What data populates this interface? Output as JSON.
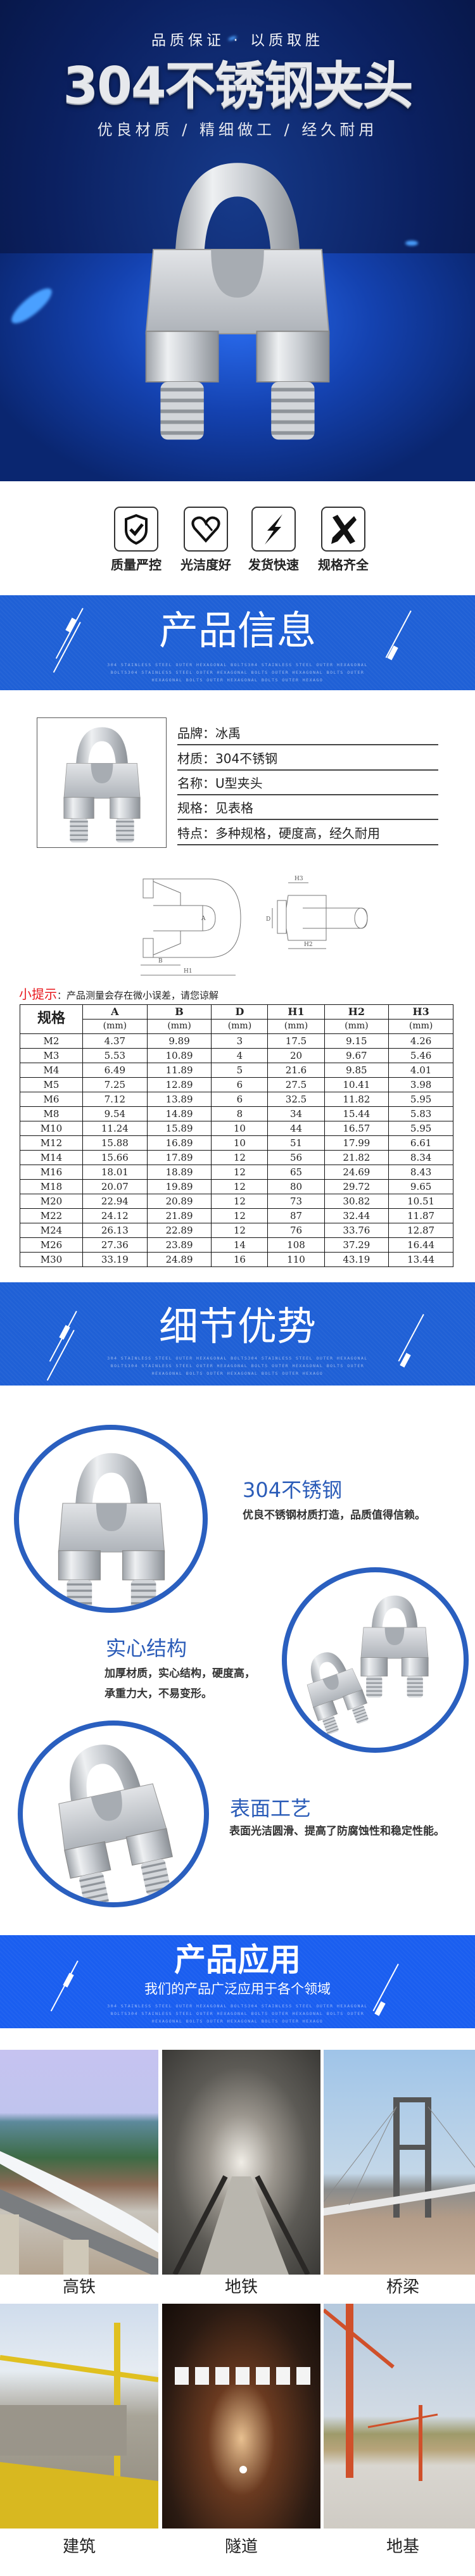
{
  "hero": {
    "kicker": "品质保证 · 以质取胜",
    "title": "304不锈钢夹头",
    "subtitle": "优良材质 / 精细做工 / 经久耐用"
  },
  "features": [
    {
      "icon": "shield-check-icon",
      "label": "质量严控"
    },
    {
      "icon": "heart-icon",
      "label": "光洁度好"
    },
    {
      "icon": "lightning-icon",
      "label": "发货快速"
    },
    {
      "icon": "ruler-pencil-icon",
      "label": "规格齐全"
    }
  ],
  "sections": {
    "info_title": "产品信息",
    "detail_title": "细节优势",
    "app_title": "产品应用",
    "app_subtitle": "我们的产品广泛应用于各个领域",
    "en_text": "304 STAINLESS STEEL OUTER HEXAGONAL BOLTS304 STAINLESS STEEL OUTER HEXAGONAL BOLTS304 STAINLESS STEEL OUTER HEXAGONAL BOLTS OUTER HEXAGONAL BOLTS OUTER HEXAGONAL BOLTS OUTER HEXAGONAL BOLTS OUTER HEXAGO"
  },
  "info": [
    {
      "label": "品牌：",
      "value": "冰禹"
    },
    {
      "label": "材质：",
      "value": "304不锈钢"
    },
    {
      "label": "名称：",
      "value": "U型夹头"
    },
    {
      "label": "规格：",
      "value": "见表格"
    },
    {
      "label": "特点：",
      "value": "多种规格，硬度高，经久耐用"
    }
  ],
  "diagram_labels": {
    "a": "A",
    "b": "B",
    "d": "D",
    "h1": "H1",
    "h2": "H2",
    "h3": "H3"
  },
  "hint": {
    "label": "小提示",
    "text": "：产品测量会存在微小误差，请您谅解"
  },
  "spec_table": {
    "header": "规格",
    "columns": [
      "A",
      "B",
      "D",
      "H1",
      "H2",
      "H3"
    ],
    "unit": "(mm)",
    "rows": [
      [
        "M2",
        "4.37",
        "9.89",
        "3",
        "17.5",
        "9.15",
        "4.26"
      ],
      [
        "M3",
        "5.53",
        "10.89",
        "4",
        "20",
        "9.67",
        "5.46"
      ],
      [
        "M4",
        "6.49",
        "11.89",
        "5",
        "21.6",
        "9.85",
        "4.01"
      ],
      [
        "M5",
        "7.25",
        "12.89",
        "6",
        "27.5",
        "10.41",
        "3.98"
      ],
      [
        "M6",
        "7.12",
        "13.89",
        "6",
        "32.5",
        "11.82",
        "5.95"
      ],
      [
        "M8",
        "9.54",
        "14.89",
        "8",
        "34",
        "15.44",
        "5.83"
      ],
      [
        "M10",
        "11.24",
        "15.89",
        "10",
        "44",
        "16.57",
        "5.95"
      ],
      [
        "M12",
        "15.88",
        "16.89",
        "10",
        "51",
        "17.99",
        "6.61"
      ],
      [
        "M14",
        "15.66",
        "17.89",
        "12",
        "56",
        "21.82",
        "8.34"
      ],
      [
        "M16",
        "18.01",
        "18.89",
        "12",
        "65",
        "24.69",
        "8.43"
      ],
      [
        "M18",
        "20.07",
        "19.89",
        "12",
        "80",
        "29.72",
        "9.65"
      ],
      [
        "M20",
        "22.94",
        "20.89",
        "12",
        "73",
        "30.82",
        "10.51"
      ],
      [
        "M22",
        "24.12",
        "21.89",
        "12",
        "87",
        "32.44",
        "11.87"
      ],
      [
        "M24",
        "26.13",
        "22.89",
        "12",
        "76",
        "33.76",
        "12.87"
      ],
      [
        "M26",
        "27.36",
        "23.89",
        "14",
        "108",
        "37.29",
        "16.44"
      ],
      [
        "M30",
        "33.19",
        "24.89",
        "16",
        "110",
        "43.19",
        "13.44"
      ]
    ]
  },
  "details": [
    {
      "title": "304不锈钢",
      "desc": [
        "优良不锈钢材质打造，品质值得信赖。"
      ]
    },
    {
      "title": "实心结构",
      "desc": [
        "加厚材质，实心结构，硬度高，",
        "承重力大，不易变形。"
      ]
    },
    {
      "title": "表面工艺",
      "desc": [
        "表面光洁圆滑、提高了防腐蚀性和稳定性能。"
      ]
    }
  ],
  "applications": [
    "高铁",
    "地铁",
    "桥梁",
    "建筑",
    "隧道",
    "地基"
  ],
  "colors": {
    "band_blue": "#1f60d6",
    "feature_title_blue": "#2b5cb8",
    "hint_red": "#e8191e",
    "ellipse_blue": "#2a5fbf"
  }
}
